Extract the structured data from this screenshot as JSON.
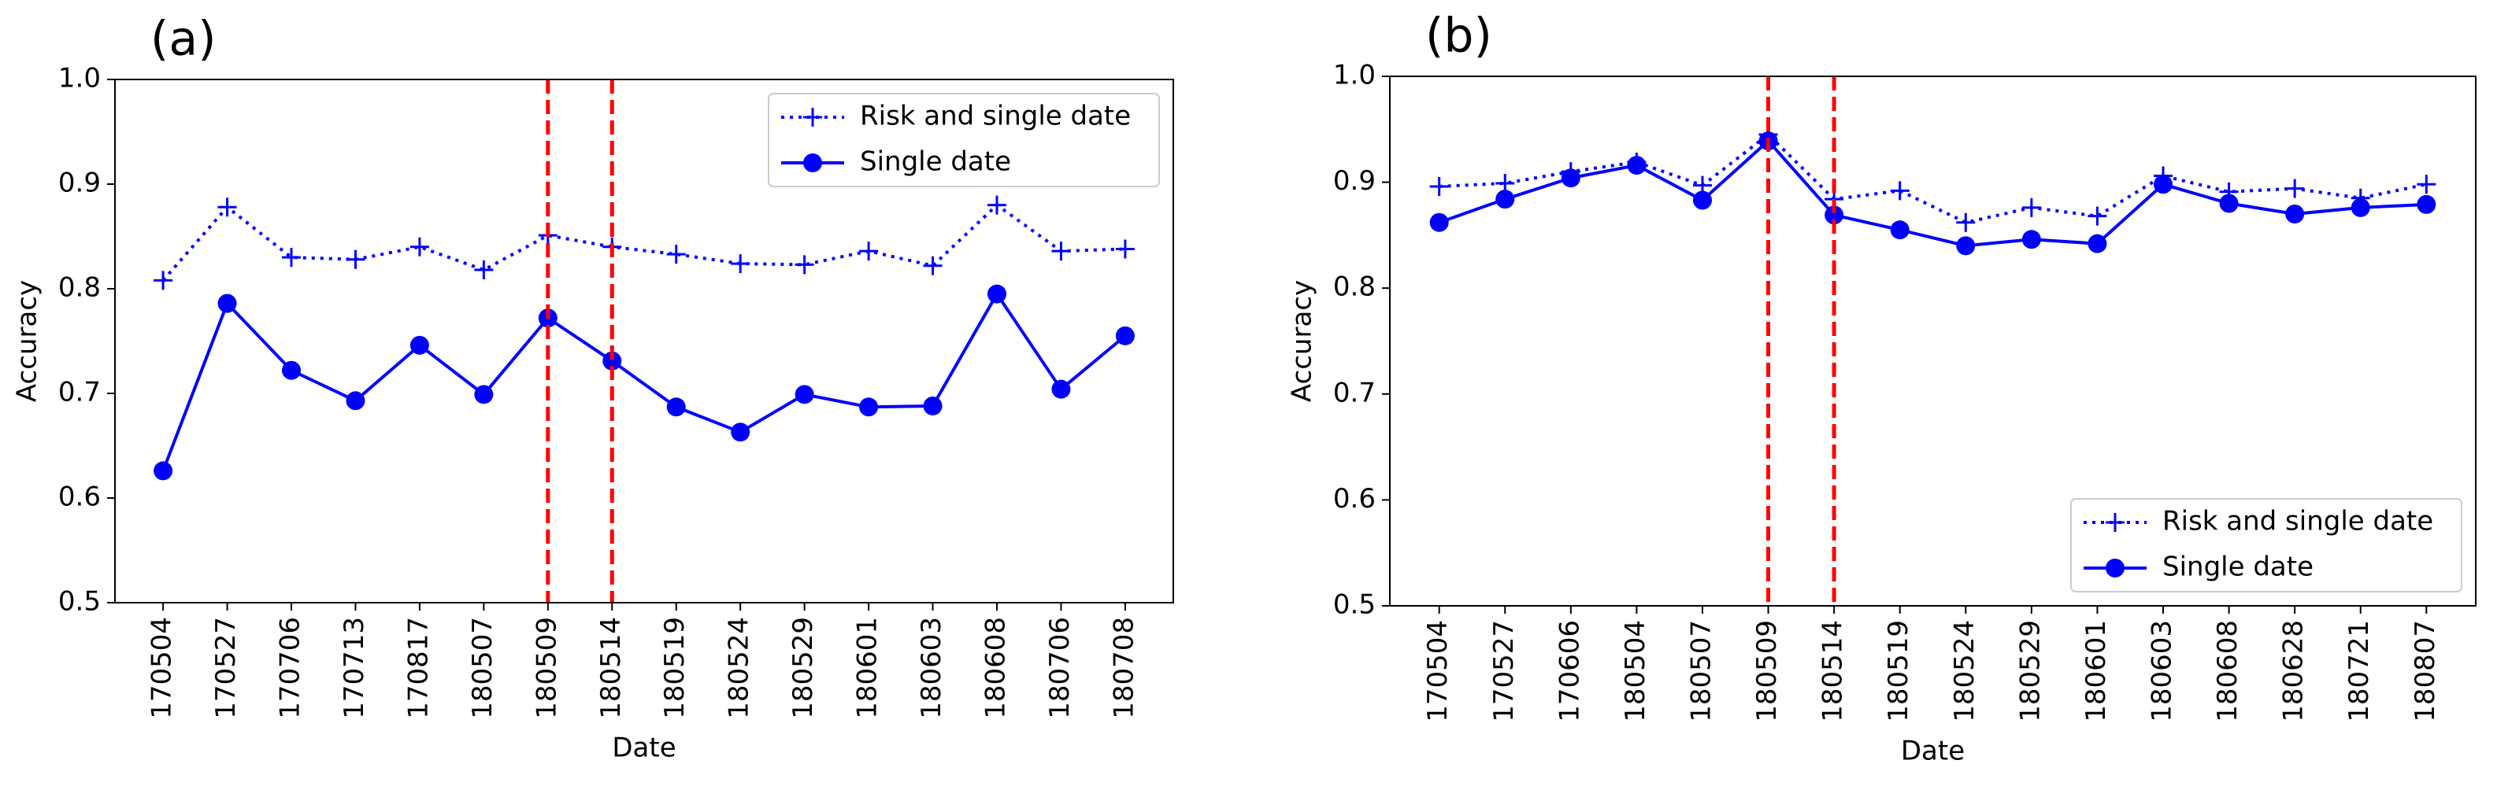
{
  "chart_data": [
    {
      "type": "line",
      "panel_label": "(a)",
      "xlabel": "Date",
      "ylabel": "Accuracy",
      "categories": [
        "170504",
        "170527",
        "170706",
        "170713",
        "170817",
        "180507",
        "180509",
        "180514",
        "180519",
        "180524",
        "180529",
        "180601",
        "180603",
        "180608",
        "180706",
        "180708"
      ],
      "series": [
        {
          "name": "Risk and single date",
          "color": "#0000ff",
          "linestyle": "dotted",
          "marker": "+",
          "values": [
            0.808,
            0.878,
            0.83,
            0.828,
            0.84,
            0.818,
            0.851,
            0.84,
            0.833,
            0.824,
            0.823,
            0.836,
            0.822,
            0.88,
            0.836,
            0.838
          ]
        },
        {
          "name": "Single date",
          "color": "#0000ff",
          "linestyle": "solid",
          "marker": "o",
          "values": [
            0.626,
            0.786,
            0.722,
            0.693,
            0.746,
            0.699,
            0.772,
            0.731,
            0.687,
            0.663,
            0.699,
            0.687,
            0.688,
            0.795,
            0.704,
            0.755
          ]
        }
      ],
      "ylim": [
        0.5,
        1
      ],
      "yticks": [
        0.5,
        0.6,
        0.7,
        0.8,
        0.9,
        {
          "value": 1,
          "label": "1.0"
        }
      ],
      "vlines": [
        "180509",
        "180514"
      ],
      "vline_color": "#ff0000",
      "legend": "upper right"
    },
    {
      "type": "line",
      "panel_label": "(b)",
      "xlabel": "Date",
      "ylabel": "Accuracy",
      "categories": [
        "170504",
        "170527",
        "170606",
        "180504",
        "180507",
        "180509",
        "180514",
        "180519",
        "180524",
        "180529",
        "180601",
        "180603",
        "180608",
        "180628",
        "180721",
        "180807"
      ],
      "series": [
        {
          "name": "Risk and single date",
          "color": "#0000ff",
          "linestyle": "dotted",
          "marker": "+",
          "values": [
            0.896,
            0.899,
            0.91,
            0.919,
            0.897,
            0.945,
            0.884,
            0.892,
            0.862,
            0.876,
            0.868,
            0.906,
            0.891,
            0.894,
            0.885,
            0.898
          ]
        },
        {
          "name": "Single date",
          "color": "#0000ff",
          "linestyle": "solid",
          "marker": "o",
          "values": [
            0.862,
            0.884,
            0.904,
            0.916,
            0.883,
            0.939,
            0.869,
            0.855,
            0.84,
            0.846,
            0.842,
            0.898,
            0.88,
            0.87,
            0.876,
            0.879
          ]
        }
      ],
      "ylim": [
        0.5,
        1
      ],
      "yticks": [
        0.5,
        0.6,
        0.7,
        0.8,
        0.9,
        {
          "value": 1,
          "label": "1.0"
        }
      ],
      "vlines": [
        "180509",
        "180514"
      ],
      "vline_color": "#ff0000",
      "legend": "lower right"
    }
  ]
}
